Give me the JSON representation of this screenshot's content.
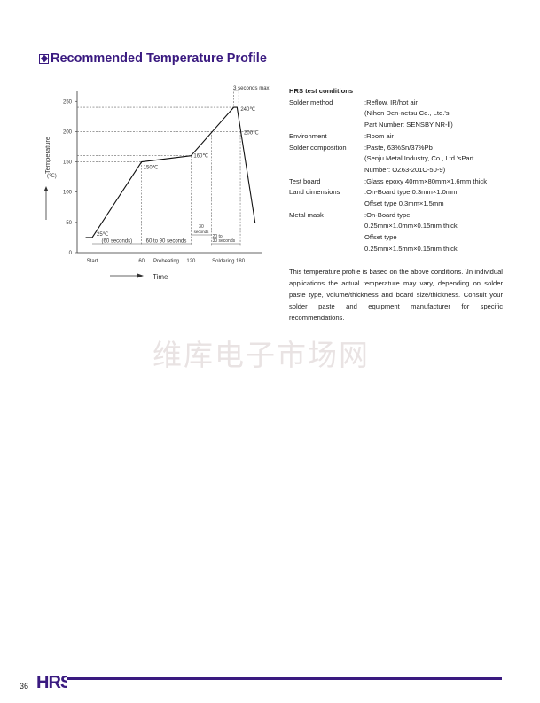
{
  "title": "Recommended Temperature Profile",
  "conditions": {
    "heading": "HRS test conditions",
    "rows": [
      {
        "k": "Solder method",
        "v": ":Reflow, IR/hot air"
      },
      {
        "k": "",
        "v": " (Nihon Den-netsu Co., Ltd.'s"
      },
      {
        "k": "",
        "v": " Part Number: SENSBY NR-Ⅱ)"
      },
      {
        "k": "Environment",
        "v": ":Room air"
      },
      {
        "k": "Solder composition",
        "v": ":Paste, 63%Sn/37%Pb"
      },
      {
        "k": "",
        "v": " (Senju Metal Industry, Co., Ltd.'sPart"
      },
      {
        "k": "",
        "v": " Number: OZ63-201C-50-9)"
      },
      {
        "k": "Test board",
        "v": ":Glass epoxy 40mm×80mm×1.6mm thick"
      },
      {
        "k": "Land dimensions",
        "v": ":On-Board type 0.3mm×1.0mm"
      },
      {
        "k": "",
        "v": " Offset type 0.3mm×1.5mm"
      },
      {
        "k": "Metal mask",
        "v": ":On-Board type"
      },
      {
        "k": "",
        "v": " 0.25mm×1.0mm×0.15mm thick"
      },
      {
        "k": "",
        "v": " Offset type"
      },
      {
        "k": "",
        "v": " 0.25mm×1.5mm×0.15mm thick"
      }
    ]
  },
  "note": "This temperature profile is based on the above conditions. \\In individual applications the actual temperature may vary, depending on solder paste type, volume/thickness and board size/thickness. Consult your solder paste and equipment manufacturer for specific recommendations.",
  "watermark": "维库电子市场网",
  "footer": {
    "page": "36",
    "logo": "HRS",
    "accent": "#3a1a80"
  },
  "chart_data": {
    "type": "line",
    "ylabel": "Temperature",
    "yunit": "(℃)",
    "xlabel": "Time",
    "ylim": [
      0,
      250
    ],
    "yticks": [
      "0",
      "50",
      "100",
      "150",
      "200",
      "250"
    ],
    "xticks": [
      {
        "x": 0,
        "label": "Start"
      },
      {
        "x": 60,
        "label": "60"
      },
      {
        "x": 120,
        "label": "120"
      },
      {
        "x": 180,
        "label": "180"
      }
    ],
    "phase_labels": [
      {
        "x": 90,
        "label": "Preheating"
      },
      {
        "x": 155,
        "label": "Soldering"
      }
    ],
    "points": [
      [
        -8,
        25
      ],
      [
        0,
        25
      ],
      [
        60,
        150
      ],
      [
        120,
        160
      ],
      [
        172,
        240
      ],
      [
        176,
        240
      ],
      [
        198,
        49
      ]
    ],
    "point_labels": [
      {
        "x": 0,
        "y": 25,
        "label": "25℃"
      },
      {
        "x": 60,
        "y": 150,
        "label": "150℃"
      },
      {
        "x": 120,
        "y": 160,
        "label": "160℃"
      },
      {
        "x": 176,
        "y": 240,
        "label": "240℃"
      },
      {
        "x": 180,
        "y": 200,
        "label": "200℃"
      }
    ],
    "intervals": [
      {
        "from": 0,
        "to": 60,
        "label": "(60 seconds)"
      },
      {
        "from": 60,
        "to": 120,
        "label": "60 to 90 seconds"
      },
      {
        "from": 120,
        "to": 145,
        "label": "30 seconds"
      },
      {
        "from": 145,
        "to": 180,
        "label": "20 to 30 seconds"
      },
      {
        "from": 172,
        "to": 178,
        "label": "3 seconds max."
      }
    ],
    "grid": false
  }
}
